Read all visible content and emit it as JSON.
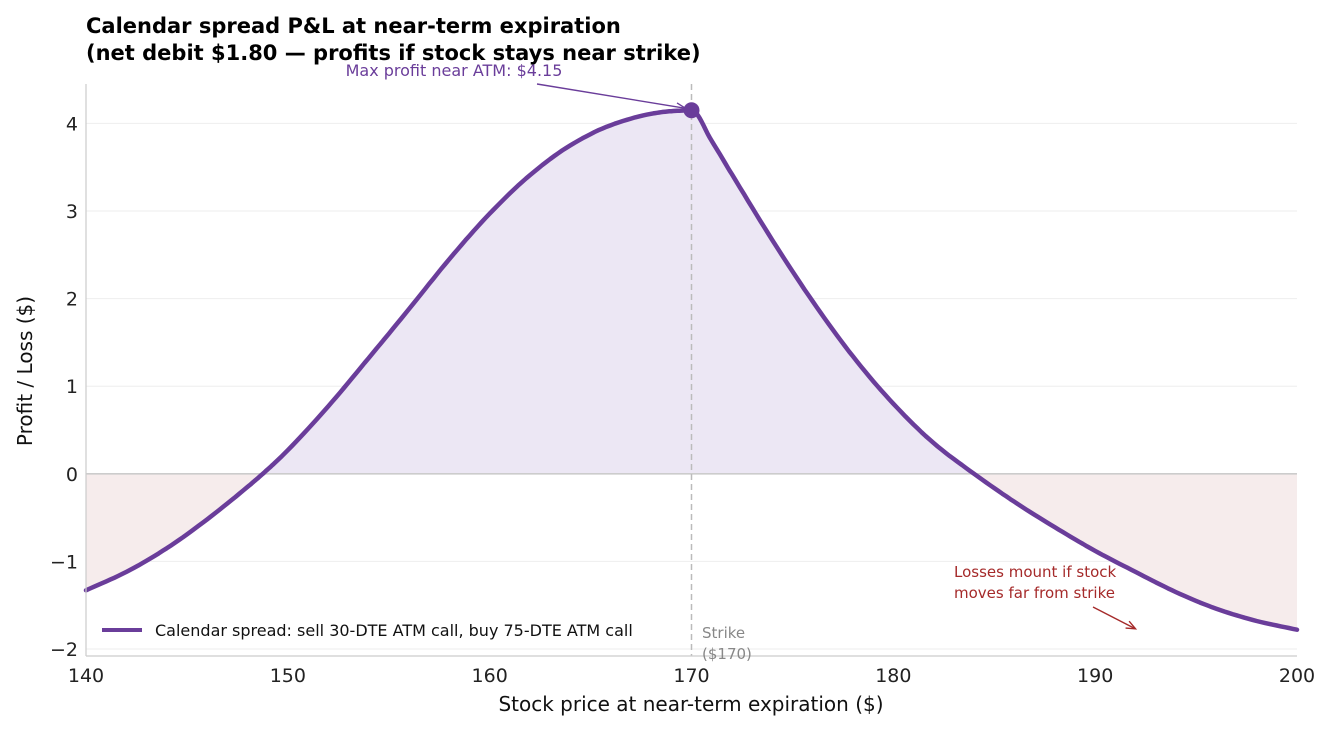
{
  "chart_data": {
    "type": "line",
    "title_line1": "Calendar spread P&L at near-term expiration",
    "title_line2": "(net debit $1.80 — profits if stock stays near strike)",
    "xlabel": "Stock price at near-term expiration ($)",
    "ylabel": "Profit / Loss ($)",
    "xlim": [
      140,
      200
    ],
    "ylim": [
      -2.08,
      4.45
    ],
    "x_ticks": [
      140,
      150,
      160,
      170,
      180,
      190,
      200
    ],
    "y_ticks": [
      -2,
      -1,
      0,
      1,
      2,
      3,
      4
    ],
    "x_tick_labels": [
      "140",
      "150",
      "160",
      "170",
      "180",
      "190",
      "200"
    ],
    "y_tick_labels": [
      "−2",
      "−1",
      "0",
      "1",
      "2",
      "3",
      "4"
    ],
    "grid": "horizontal",
    "legend_position": "bottom-left",
    "colors": {
      "line": "#6a3d9a",
      "profit_fill": "#ece7f4",
      "loss_fill": "#f6ecec",
      "loss_annotation": "#a52a2a",
      "strike_line": "#bbbbbb"
    },
    "series": [
      {
        "name": "Calendar spread: sell 30-DTE ATM call, buy 75-DTE ATM call",
        "x": [
          140,
          142,
          144,
          146,
          148,
          149,
          150,
          152,
          154,
          156,
          158,
          160,
          162,
          164,
          166,
          168,
          169,
          170,
          171,
          172,
          174,
          176,
          178,
          180,
          182,
          184,
          186,
          188,
          190,
          192,
          194,
          196,
          198,
          200
        ],
        "y": [
          -1.33,
          -1.12,
          -0.85,
          -0.52,
          -0.15,
          0.05,
          0.27,
          0.77,
          1.32,
          1.88,
          2.45,
          2.97,
          3.41,
          3.75,
          3.98,
          4.11,
          4.14,
          4.15,
          3.8,
          3.42,
          2.67,
          1.97,
          1.34,
          0.8,
          0.35,
          0.0,
          -0.32,
          -0.61,
          -0.88,
          -1.12,
          -1.35,
          -1.54,
          -1.68,
          -1.78
        ]
      }
    ],
    "max_point": {
      "x": 170,
      "y": 4.15
    },
    "strike": 170,
    "annotations": {
      "max_profit": "Max profit near ATM: $4.15",
      "loss_line1": "Losses mount if stock",
      "loss_line2": "moves far from strike",
      "strike_line1": "Strike",
      "strike_line2": "($170)"
    }
  }
}
